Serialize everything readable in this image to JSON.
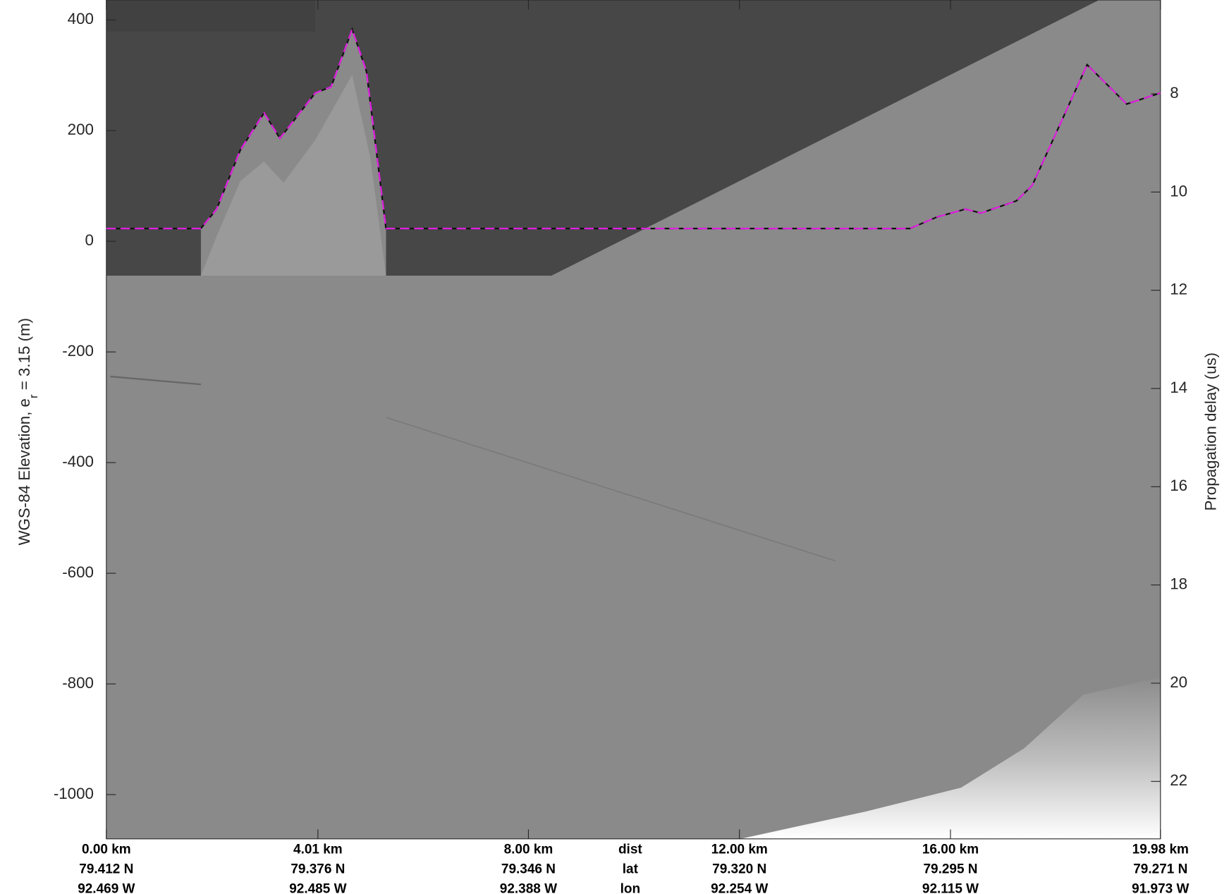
{
  "chart_data": {
    "type": "line",
    "ylabel": "WGS-84 Elevation, e",
    "ylabel_sub": "r",
    "ylabel_rest": " = 3.15 (m)",
    "y2label": "Propagation delay (us)",
    "x": [
      0,
      1.79,
      2.09,
      2.54,
      2.99,
      3.29,
      3.96,
      4.26,
      4.66,
      4.93,
      5.3,
      15.23,
      15.75,
      16.28,
      16.58,
      17.25,
      17.55,
      18.59,
      19.34,
      19.98
    ],
    "series": [
      {
        "color": "#e020e0",
        "values": [
          23,
          23,
          58,
          165,
          232,
          186,
          268,
          279,
          383,
          307,
          23,
          23,
          44,
          58,
          51,
          73,
          101,
          319,
          248,
          268
        ]
      }
    ],
    "xlim": [
      0,
      19.98
    ],
    "xticks": [
      {
        "value": 0,
        "label": "0.00 km"
      },
      {
        "value": 4.01,
        "label": "4.01 km"
      },
      {
        "value": 8.0,
        "label": "8.00 km"
      },
      {
        "value": 12.0,
        "label": "12.00 km"
      },
      {
        "value": 16.0,
        "label": "16.00 km"
      },
      {
        "value": 19.98,
        "label": "19.98 km"
      }
    ],
    "lat_labels": [
      "79.412 N",
      "79.376 N",
      "79.346 N",
      "79.320 N",
      "79.295 N",
      "79.271 N"
    ],
    "lon_labels": [
      "92.469 W",
      "92.485 W",
      "92.388 W",
      "92.254 W",
      "92.115 W",
      "91.973 W"
    ],
    "row_names": [
      "dist",
      "lat",
      "lon"
    ],
    "ylim": [
      -1080,
      436
    ],
    "yticks": [
      400,
      200,
      0,
      -200,
      -400,
      -600,
      -800,
      -1000
    ],
    "y2lim": [
      23.17,
      6.09
    ],
    "y2ticks": [
      8,
      10,
      12,
      14,
      16,
      18,
      20,
      22
    ]
  }
}
